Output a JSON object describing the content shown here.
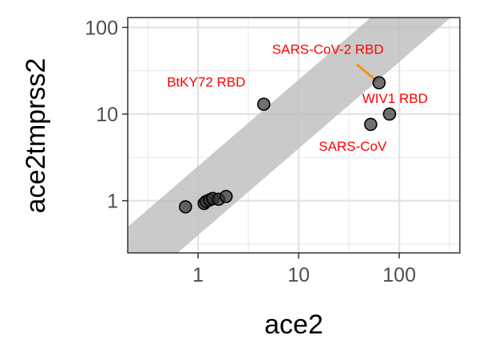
{
  "chart_data": {
    "type": "scatter",
    "xlabel": "ace2",
    "ylabel": "ace2tmprss2",
    "x_scale": "log10",
    "y_scale": "log10",
    "xlim": [
      0.2,
      400
    ],
    "ylim": [
      0.25,
      130
    ],
    "x_ticks": [
      {
        "value": 1,
        "label": "1"
      },
      {
        "value": 10,
        "label": "10"
      },
      {
        "value": 100,
        "label": "100"
      }
    ],
    "y_ticks": [
      {
        "value": 1,
        "label": "1"
      },
      {
        "value": 10,
        "label": "10"
      },
      {
        "value": 100,
        "label": "100"
      }
    ],
    "grid": true,
    "point_color": "#333333",
    "band_color": "#bdbdbd",
    "annotation_color": "#ff0000",
    "highlight_color": "#f0960f",
    "band": {
      "description": "y = x identity band",
      "factor": 2.5
    },
    "points": [
      {
        "x": 0.75,
        "y": 0.85
      },
      {
        "x": 1.15,
        "y": 0.93
      },
      {
        "x": 1.2,
        "y": 0.98
      },
      {
        "x": 1.3,
        "y": 1.02
      },
      {
        "x": 1.4,
        "y": 1.06
      },
      {
        "x": 1.6,
        "y": 1.04
      },
      {
        "x": 1.9,
        "y": 1.12
      },
      {
        "x": 4.5,
        "y": 13
      },
      {
        "x": 52,
        "y": 7.6
      },
      {
        "x": 63,
        "y": 23
      },
      {
        "x": 80,
        "y": 10
      }
    ],
    "annotations": [
      {
        "text": "SARS-CoV-2 RBD",
        "x": 63,
        "y": 23,
        "highlight": true
      },
      {
        "text": "BtKY72 RBD",
        "x": 4.5,
        "y": 13,
        "highlight": false
      },
      {
        "text": "WIV1 RBD",
        "x": 80,
        "y": 10,
        "highlight": false
      },
      {
        "text": "SARS-CoV",
        "x": 52,
        "y": 7.6,
        "highlight": false
      }
    ]
  }
}
